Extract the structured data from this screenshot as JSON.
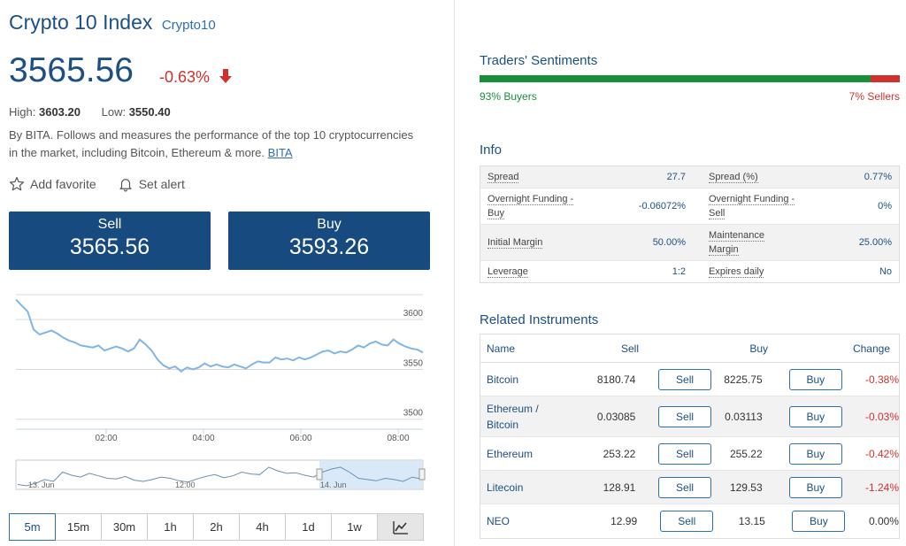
{
  "instrument": {
    "name": "Crypto 10 Index",
    "symbol": "Crypto10",
    "price": "3565.56",
    "change": "-0.63%",
    "high_label": "High:",
    "high": "3603.20",
    "low_label": "Low:",
    "low": "3550.40",
    "description": "By BITA. Follows and measures the performance of the top 10 cryptocurrencies in the market, including Bitcoin, Ethereum & more.",
    "description_link": "BITA"
  },
  "actions": {
    "favorite": "Add favorite",
    "alert": "Set alert"
  },
  "trade": {
    "sell_label": "Sell",
    "sell_price": "3565.56",
    "buy_label": "Buy",
    "buy_price": "3593.26"
  },
  "chart_data": {
    "type": "line",
    "x_ticks": [
      "02:00",
      "04:00",
      "06:00",
      "08:00"
    ],
    "y_ticks": [
      "3600",
      "3550",
      "3500"
    ],
    "ylim": [
      3490,
      3625
    ],
    "values": [
      3620,
      3614,
      3608,
      3590,
      3585,
      3587,
      3589,
      3586,
      3582,
      3579,
      3577,
      3574,
      3573,
      3572,
      3574,
      3569,
      3571,
      3573,
      3571,
      3568,
      3571,
      3580,
      3575,
      3569,
      3560,
      3554,
      3551,
      3553,
      3548,
      3552,
      3550,
      3552,
      3556,
      3553,
      3555,
      3553,
      3552,
      3555,
      3553,
      3551,
      3555,
      3558,
      3557,
      3557,
      3562,
      3560,
      3561,
      3559,
      3562,
      3560,
      3562,
      3565,
      3568,
      3569,
      3566,
      3568,
      3567,
      3570,
      3574,
      3572,
      3576,
      3578,
      3575,
      3574,
      3580,
      3576,
      3573,
      3571,
      3570,
      3567
    ]
  },
  "navigator": {
    "labels": [
      "13. Jun",
      "12:00",
      "14. Jun"
    ]
  },
  "periods": [
    "5m",
    "15m",
    "30m",
    "1h",
    "2h",
    "4h",
    "1d",
    "1w"
  ],
  "active_period": "5m",
  "sentiment": {
    "title": "Traders' Sentiments",
    "buyers_pct": 93,
    "buyers_label": "93% Buyers",
    "sellers_label": "7% Sellers"
  },
  "info": {
    "title": "Info",
    "rows": [
      {
        "l1": "Spread",
        "v1": "27.7",
        "l2": "Spread (%)",
        "v2": "0.77%"
      },
      {
        "l1a": "Overnight Funding -",
        "l1b": "Buy",
        "v1": "-0.06072%",
        "l2a": "Overnight Funding -",
        "l2b": "Sell",
        "v2": "0%"
      },
      {
        "l1": "Initial Margin",
        "v1": "50.00%",
        "l2a": "Maintenance",
        "l2b": "Margin",
        "v2": "25.00%"
      },
      {
        "l1": "Leverage",
        "v1": "1:2",
        "l2": "Expires daily",
        "v2": "No"
      }
    ]
  },
  "related": {
    "title": "Related Instruments",
    "headers": {
      "name": "Name",
      "sell": "Sell",
      "buy": "Buy",
      "change": "Change"
    },
    "button_sell": "Sell",
    "button_buy": "Buy",
    "rows": [
      {
        "name": "Bitcoin",
        "sell": "8180.74",
        "buy": "8225.75",
        "change": "-0.38%"
      },
      {
        "name": "Ethereum / Bitcoin",
        "sell": "0.03085",
        "buy": "0.03113",
        "change": "-0.03%"
      },
      {
        "name": "Ethereum",
        "sell": "253.22",
        "buy": "255.22",
        "change": "-0.42%"
      },
      {
        "name": "Litecoin",
        "sell": "128.91",
        "buy": "129.53",
        "change": "-1.24%"
      },
      {
        "name": "NEO",
        "sell": "12.99",
        "buy": "13.15",
        "change": "0.00%"
      }
    ]
  },
  "colors": {
    "primary": "#174a7f",
    "negative": "#d0312d",
    "positive": "#1a8f3a",
    "line": "#7fb6e6"
  }
}
